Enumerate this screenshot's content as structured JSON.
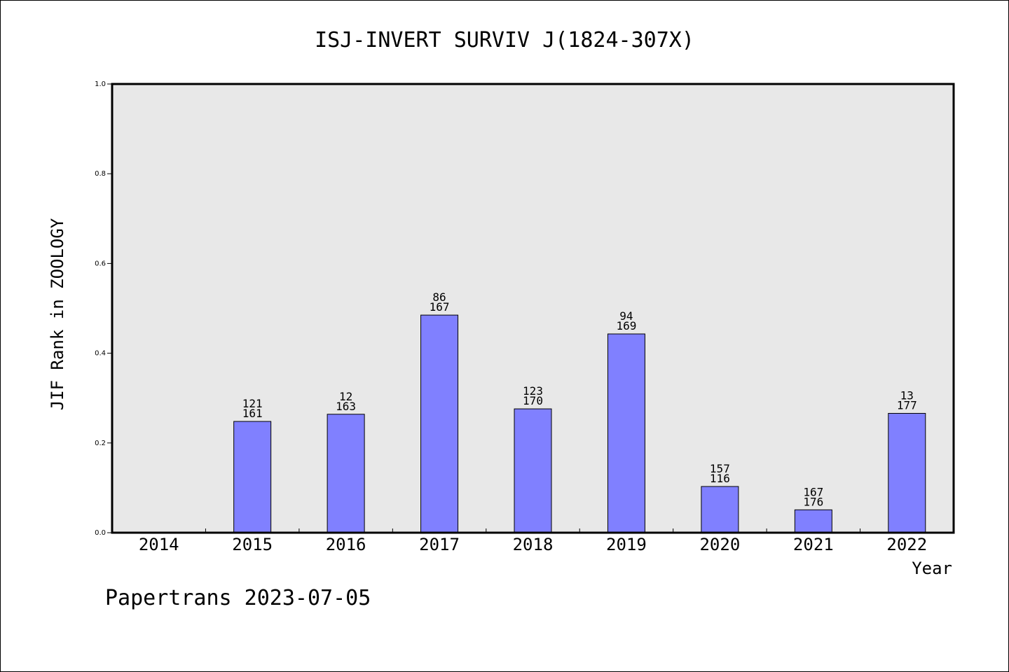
{
  "chart_data": {
    "type": "bar",
    "title": "ISJ-INVERT SURVIV J(1824-307X)",
    "xlabel": "Year",
    "ylabel": "JIF Rank in ZOOLOGY",
    "ylim": [
      0,
      1.0
    ],
    "yticks": [
      "0.0",
      "0.2",
      "0.4",
      "0.6",
      "0.8",
      "1.0"
    ],
    "categories": [
      "2014",
      "2015",
      "2016",
      "2017",
      "2018",
      "2019",
      "2020",
      "2021",
      "2022"
    ],
    "values": [
      null,
      0.248,
      0.264,
      0.485,
      0.276,
      0.443,
      0.103,
      0.051,
      0.266
    ],
    "labels_top": [
      "",
      "121",
      "12",
      "86",
      "123",
      "94",
      "157",
      "167",
      "13"
    ],
    "labels_bottom": [
      "",
      "161",
      "163",
      "167",
      "170",
      "169",
      "116",
      "176",
      "177"
    ],
    "grid": false,
    "colors": {
      "bar": "#8080ff",
      "plot_bg": "#e8e8e8",
      "border": "#000000"
    }
  },
  "footer": "Papertrans 2023-07-05"
}
